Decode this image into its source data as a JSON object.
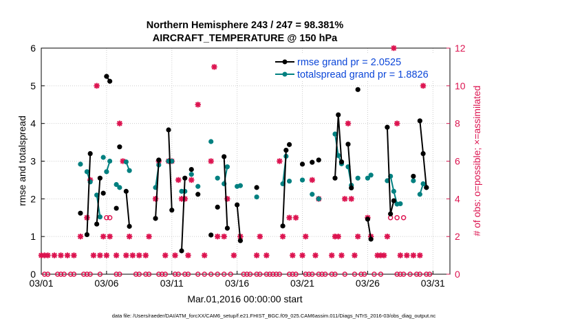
{
  "chart_data": {
    "type": "line",
    "title": "Northern Hemisphere 243 / 247 = 98.381%",
    "subtitle": "AIRCRAFT_TEMPERATURE @ 150 hPa",
    "xlabel": "Mar.01,2016 00:00:00 start",
    "ylabel": "rmse and totalspread",
    "ylabel_right": "# of obs: o=possible; ×=assimilated",
    "footnote": "data file: /Users/raeder/DAI/ATM_forcXX/CAM6_setup/f.e21.FHIST_BGC.f09_025.CAM6assim.011/Diags_NTrS_2016-03/obs_diag_output.nc",
    "xlim": [
      1,
      32.3
    ],
    "ylim": [
      0,
      6
    ],
    "ylim_right": [
      0,
      12
    ],
    "x_ticks": [
      {
        "x": 1,
        "label": "03/01"
      },
      {
        "x": 6,
        "label": "03/06"
      },
      {
        "x": 11,
        "label": "03/11"
      },
      {
        "x": 16,
        "label": "03/16"
      },
      {
        "x": 21,
        "label": "03/21"
      },
      {
        "x": 26,
        "label": "03/26"
      },
      {
        "x": 31,
        "label": "03/31"
      }
    ],
    "y_ticks": [
      0,
      1,
      2,
      3,
      4,
      5,
      6
    ],
    "y_ticks_right": [
      0,
      2,
      4,
      6,
      8,
      10,
      12
    ],
    "grid": true,
    "legend_position": "top-right",
    "colors": {
      "rmse": "#000000",
      "spread": "#008080",
      "obs": "#dc1450"
    },
    "series": [
      {
        "name": "rmse grand pr = 2.0525",
        "color": "#000000",
        "segments": [
          [
            [
              4.0,
              1.62
            ]
          ],
          [
            [
              4.5,
              1.05
            ],
            [
              4.75,
              3.2
            ]
          ],
          [
            [
              5.25,
              1.33
            ],
            [
              5.5,
              2.55
            ]
          ],
          [
            [
              5.75,
              2.15
            ]
          ],
          [
            [
              6.0,
              5.25
            ],
            [
              6.25,
              5.12
            ]
          ],
          [
            [
              6.75,
              1.75
            ]
          ],
          [
            [
              7.0,
              3.38
            ]
          ],
          [
            [
              7.5,
              2.2
            ],
            [
              7.75,
              1.27
            ]
          ],
          [
            [
              9.75,
              1.48
            ],
            [
              10.0,
              3.03
            ]
          ],
          [
            [
              10.75,
              3.83
            ],
            [
              11.0,
              1.7
            ]
          ],
          [
            [
              11.75,
              0.62
            ],
            [
              12.0,
              2.55
            ]
          ],
          [
            [
              12.5,
              2.78
            ]
          ],
          [
            [
              13.0,
              2.12
            ]
          ],
          [
            [
              14.0,
              1.04
            ]
          ],
          [
            [
              14.5,
              1.78
            ]
          ],
          [
            [
              15.0,
              3.12
            ],
            [
              15.25,
              1.22
            ]
          ],
          [
            [
              16.0,
              1.84
            ],
            [
              16.25,
              0.89
            ]
          ],
          [
            [
              17.5,
              2.3
            ]
          ],
          [
            [
              19.5,
              1.28
            ],
            [
              19.75,
              3.29
            ]
          ],
          [
            [
              20.0,
              3.44
            ]
          ],
          [
            [
              21.0,
              2.92
            ]
          ],
          [
            [
              21.75,
              2.97
            ]
          ],
          [
            [
              22.25,
              3.03
            ]
          ],
          [
            [
              23.5,
              2.55
            ],
            [
              23.75,
              4.23
            ],
            [
              24.0,
              2.98
            ]
          ],
          [
            [
              24.5,
              3.45
            ],
            [
              24.75,
              2.29
            ]
          ],
          [
            [
              25.25,
              4.9
            ]
          ],
          [
            [
              26.0,
              1.46
            ],
            [
              26.25,
              0.93
            ]
          ],
          [
            [
              27.5,
              3.9
            ],
            [
              27.75,
              1.6
            ],
            [
              28.0,
              1.95
            ]
          ],
          [
            [
              29.5,
              2.6
            ]
          ],
          [
            [
              30.0,
              4.07
            ],
            [
              30.25,
              3.2
            ],
            [
              30.5,
              2.3
            ]
          ]
        ]
      },
      {
        "name": "totalspread grand pr = 1.8826",
        "color": "#008080",
        "segments": [
          [
            [
              4.0,
              2.92
            ]
          ],
          [
            [
              4.5,
              2.72
            ],
            [
              4.75,
              2.45
            ]
          ],
          [
            [
              5.25,
              2.1
            ],
            [
              5.5,
              1.52
            ]
          ],
          [
            [
              5.75,
              3.1
            ]
          ],
          [
            [
              6.0,
              2.72
            ],
            [
              6.25,
              3.0
            ]
          ],
          [
            [
              6.75,
              2.38
            ]
          ],
          [
            [
              7.0,
              2.3
            ]
          ],
          [
            [
              7.5,
              2.98
            ],
            [
              7.75,
              2.75
            ]
          ],
          [
            [
              9.75,
              2.3
            ],
            [
              10.0,
              2.9
            ]
          ],
          [
            [
              10.75,
              3.0
            ],
            [
              11.0,
              3.0
            ]
          ],
          [
            [
              11.75,
              2.2
            ],
            [
              12.0,
              2.2
            ]
          ],
          [
            [
              12.5,
              2.65
            ]
          ],
          [
            [
              13.0,
              2.33
            ]
          ],
          [
            [
              14.0,
              3.52
            ]
          ],
          [
            [
              14.5,
              2.55
            ]
          ],
          [
            [
              15.0,
              2.4
            ],
            [
              15.25,
              2.85
            ]
          ],
          [
            [
              16.0,
              2.33
            ],
            [
              16.25,
              2.35
            ]
          ],
          [
            [
              17.5,
              2.05
            ]
          ],
          [
            [
              19.5,
              2.4
            ],
            [
              19.75,
              3.13
            ]
          ],
          [
            [
              20.0,
              2.47
            ]
          ],
          [
            [
              21.0,
              2.5
            ]
          ],
          [
            [
              21.75,
              2.12
            ]
          ],
          [
            [
              22.25,
              2.0
            ]
          ],
          [
            [
              23.5,
              3.72
            ],
            [
              23.75,
              3.15
            ],
            [
              24.0,
              2.93
            ]
          ],
          [
            [
              24.5,
              2.85
            ],
            [
              24.75,
              2.36
            ]
          ],
          [
            [
              25.25,
              2.55
            ]
          ],
          [
            [
              26.0,
              2.55
            ],
            [
              26.25,
              2.63
            ]
          ],
          [
            [
              27.5,
              2.48
            ],
            [
              27.75,
              2.6
            ],
            [
              28.0,
              2.2
            ],
            [
              28.25,
              1.86
            ],
            [
              28.5,
              1.87
            ]
          ],
          [
            [
              29.5,
              2.48
            ]
          ],
          [
            [
              30.0,
              2.12
            ],
            [
              30.25,
              2.4
            ],
            [
              30.5,
              2.3
            ]
          ]
        ]
      }
    ],
    "obs_assimilated": [
      [
        1,
        1
      ],
      [
        1.25,
        1
      ],
      [
        1.5,
        1
      ],
      [
        2,
        1
      ],
      [
        2.5,
        1
      ],
      [
        3,
        1
      ],
      [
        3.5,
        1
      ],
      [
        4,
        2
      ],
      [
        4.5,
        3
      ],
      [
        4.75,
        5
      ],
      [
        5,
        1
      ],
      [
        5.25,
        10
      ],
      [
        5.5,
        1
      ],
      [
        5.75,
        2
      ],
      [
        6,
        1
      ],
      [
        6.25,
        2
      ],
      [
        6.75,
        1
      ],
      [
        7,
        8
      ],
      [
        7.25,
        6
      ],
      [
        7.5,
        1
      ],
      [
        7.75,
        2
      ],
      [
        8,
        1
      ],
      [
        8.5,
        1
      ],
      [
        9,
        1
      ],
      [
        9.25,
        2
      ],
      [
        9.75,
        4
      ],
      [
        10,
        6
      ],
      [
        10.5,
        1
      ],
      [
        10.75,
        6
      ],
      [
        11,
        6
      ],
      [
        11.25,
        1
      ],
      [
        11.5,
        5
      ],
      [
        11.75,
        4
      ],
      [
        12,
        4
      ],
      [
        12.25,
        1
      ],
      [
        12.5,
        5
      ],
      [
        13,
        9
      ],
      [
        13.5,
        1
      ],
      [
        14,
        6
      ],
      [
        14.25,
        11
      ],
      [
        14.5,
        2
      ],
      [
        15,
        2
      ],
      [
        15.25,
        4
      ],
      [
        15.75,
        1
      ],
      [
        16.25,
        2
      ],
      [
        17.5,
        1
      ],
      [
        17.75,
        2
      ],
      [
        18.25,
        1
      ],
      [
        19.25,
        6
      ],
      [
        19.5,
        2
      ],
      [
        20,
        3
      ],
      [
        20.25,
        1
      ],
      [
        20.5,
        3
      ],
      [
        21,
        1
      ],
      [
        21.25,
        2
      ],
      [
        21.75,
        5
      ],
      [
        22,
        1
      ],
      [
        22.25,
        4
      ],
      [
        23.25,
        1
      ],
      [
        23.5,
        2
      ],
      [
        23.75,
        2
      ],
      [
        24,
        1
      ],
      [
        24.25,
        4
      ],
      [
        24.5,
        8
      ],
      [
        24.75,
        4
      ],
      [
        25,
        1
      ],
      [
        25.25,
        2
      ],
      [
        26,
        3
      ],
      [
        26.25,
        2
      ],
      [
        26.75,
        1
      ],
      [
        27,
        1
      ],
      [
        27.25,
        1
      ],
      [
        27.5,
        2
      ],
      [
        28,
        12
      ],
      [
        28.25,
        8
      ],
      [
        28.5,
        1
      ],
      [
        29,
        1
      ],
      [
        29.5,
        1
      ],
      [
        30,
        1
      ],
      [
        30.25,
        10
      ]
    ],
    "obs_possible": [
      [
        1.25,
        0
      ],
      [
        1.5,
        0
      ],
      [
        2.25,
        0
      ],
      [
        2.5,
        0
      ],
      [
        2.75,
        0
      ],
      [
        3.25,
        0
      ],
      [
        3.5,
        0
      ],
      [
        4.25,
        0
      ],
      [
        4.5,
        0
      ],
      [
        4.75,
        0
      ],
      [
        5.5,
        0
      ],
      [
        6,
        3
      ],
      [
        6.25,
        3
      ],
      [
        6.75,
        0
      ],
      [
        7,
        0
      ],
      [
        8.25,
        0
      ],
      [
        8.5,
        0
      ],
      [
        9,
        0
      ],
      [
        9.25,
        0
      ],
      [
        10,
        0
      ],
      [
        10.25,
        0
      ],
      [
        10.5,
        0
      ],
      [
        11.25,
        0
      ],
      [
        11.5,
        0
      ],
      [
        12,
        0
      ],
      [
        12.25,
        0
      ],
      [
        13,
        0
      ],
      [
        13.5,
        0
      ],
      [
        14,
        0
      ],
      [
        14.5,
        0
      ],
      [
        15,
        0
      ],
      [
        15.5,
        0
      ],
      [
        16.5,
        0
      ],
      [
        16.75,
        0
      ],
      [
        17,
        0
      ],
      [
        17.5,
        0
      ],
      [
        17.75,
        0
      ],
      [
        18.25,
        0
      ],
      [
        18.5,
        0
      ],
      [
        18.75,
        0
      ],
      [
        19,
        0
      ],
      [
        19.25,
        0
      ],
      [
        20,
        0
      ],
      [
        20.25,
        0
      ],
      [
        20.5,
        0
      ],
      [
        21.25,
        0
      ],
      [
        21.5,
        0
      ],
      [
        21.75,
        0
      ],
      [
        22.25,
        0
      ],
      [
        22.5,
        0
      ],
      [
        22.75,
        0
      ],
      [
        23.25,
        0
      ],
      [
        23.5,
        0
      ],
      [
        24.25,
        0
      ],
      [
        25,
        0
      ],
      [
        25.5,
        0
      ],
      [
        25.75,
        0
      ],
      [
        26.5,
        0
      ],
      [
        27,
        0
      ],
      [
        28.25,
        0
      ],
      [
        28.5,
        0
      ],
      [
        28.75,
        0
      ],
      [
        29.25,
        0
      ],
      [
        29.75,
        0
      ],
      [
        30,
        0
      ],
      [
        30.5,
        0
      ],
      [
        30.75,
        0
      ],
      [
        27.75,
        3
      ],
      [
        28.25,
        3
      ],
      [
        28.75,
        3
      ]
    ]
  }
}
